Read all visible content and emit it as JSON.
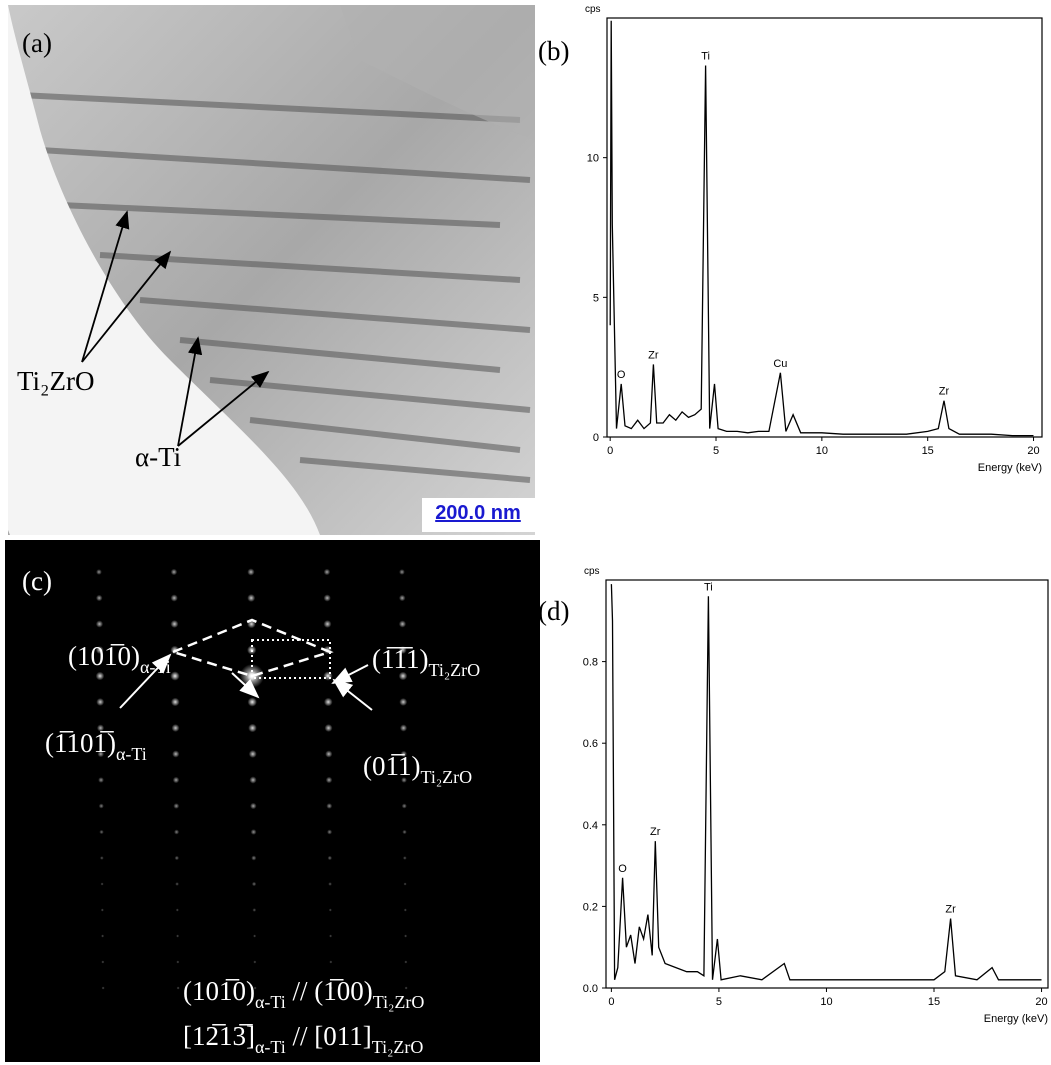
{
  "panels": {
    "a": {
      "label": "(a)",
      "phase1": "Ti₂ZrO",
      "phase2": "α-Ti",
      "scale_bar": "200.0 nm"
    },
    "b": {
      "label": "(b)"
    },
    "c": {
      "label": "(c)",
      "spots": [
        {
          "main": "(101̅0)",
          "sub": "α-Ti"
        },
        {
          "main": "(1̅1̅1)",
          "sub": "Ti₂ZrO"
        },
        {
          "main": "(1̅101̅)",
          "sub": "α-Ti"
        },
        {
          "main": "(01̅1)",
          "sub": "Ti₂ZrO"
        }
      ],
      "relations": [
        {
          "a": "(101̅0)",
          "a_sub": "α-Ti",
          "sep": " // ",
          "b": "(1̅00)",
          "b_sub": "Ti₂ZrO"
        },
        {
          "a": "[12̅13̅]",
          "a_sub": "α-Ti",
          "sep": " // ",
          "b": "[011]",
          "b_sub": "Ti₂ZrO"
        }
      ]
    },
    "d": {
      "label": "(d)"
    }
  },
  "chart_data": [
    {
      "type": "line",
      "y_label": "cps",
      "x_label": "Energy (keV)",
      "color": "#000000",
      "xlim": [
        -0.15,
        20.4
      ],
      "ylim": [
        0,
        15
      ],
      "xticks": [
        0,
        5,
        10,
        15,
        20
      ],
      "yticks": [
        0,
        5,
        10
      ],
      "x": [
        0,
        0.05,
        0.1,
        0.3,
        0.52,
        0.7,
        1.0,
        1.3,
        1.6,
        1.9,
        2.04,
        2.2,
        2.5,
        2.8,
        3.1,
        3.4,
        3.7,
        4.0,
        4.3,
        4.51,
        4.7,
        4.93,
        5.1,
        5.5,
        6.0,
        6.5,
        7.0,
        7.5,
        8.04,
        8.3,
        8.64,
        9.0,
        10,
        11,
        12,
        13,
        14,
        15,
        15.5,
        15.77,
        16.0,
        16.5,
        17,
        18,
        19,
        20
      ],
      "values": [
        4,
        14.9,
        7.6,
        0.3,
        1.9,
        0.4,
        0.3,
        0.6,
        0.3,
        0.5,
        2.6,
        0.5,
        0.5,
        0.8,
        0.6,
        0.9,
        0.7,
        0.8,
        1.0,
        13.3,
        0.3,
        1.9,
        0.3,
        0.2,
        0.2,
        0.15,
        0.2,
        0.2,
        2.3,
        0.2,
        0.8,
        0.15,
        0.15,
        0.1,
        0.1,
        0.1,
        0.1,
        0.2,
        0.3,
        1.3,
        0.3,
        0.1,
        0.1,
        0.1,
        0.05,
        0.05
      ],
      "peak_labels": [
        {
          "text": "O",
          "x": 0.52,
          "y": 1.9
        },
        {
          "text": "Zr",
          "x": 2.04,
          "y": 2.6
        },
        {
          "text": "Ti",
          "x": 4.51,
          "y": 13.3
        },
        {
          "text": "Cu",
          "x": 8.04,
          "y": 2.3
        },
        {
          "text": "Zr",
          "x": 15.77,
          "y": 1.3
        }
      ]
    },
    {
      "type": "line",
      "y_label": "cps",
      "x_label": "Energy (keV)",
      "color": "#000000",
      "xlim": [
        -0.25,
        20.3
      ],
      "ylim": [
        0,
        1
      ],
      "xticks": [
        0,
        5,
        10,
        15,
        20
      ],
      "yticks": [
        {
          "value": 0,
          "label": "0.0"
        },
        0.2,
        0.4,
        0.6,
        0.8
      ],
      "x": [
        0,
        0.05,
        0.15,
        0.3,
        0.52,
        0.7,
        0.9,
        1.1,
        1.3,
        1.5,
        1.7,
        1.9,
        2.04,
        2.2,
        2.5,
        3.0,
        3.5,
        4.0,
        4.3,
        4.51,
        4.7,
        4.93,
        5.1,
        6,
        7,
        8.04,
        8.3,
        9,
        10,
        11,
        12,
        13,
        14,
        15,
        15.5,
        15.77,
        16.0,
        17,
        17.7,
        18,
        19,
        20
      ],
      "values": [
        0.99,
        0.9,
        0.02,
        0.05,
        0.27,
        0.1,
        0.13,
        0.06,
        0.15,
        0.12,
        0.18,
        0.08,
        0.36,
        0.1,
        0.06,
        0.05,
        0.04,
        0.04,
        0.03,
        0.96,
        0.02,
        0.12,
        0.02,
        0.03,
        0.02,
        0.06,
        0.02,
        0.02,
        0.02,
        0.02,
        0.02,
        0.02,
        0.02,
        0.02,
        0.04,
        0.17,
        0.03,
        0.02,
        0.05,
        0.02,
        0.02,
        0.02
      ],
      "peak_labels": [
        {
          "text": "O",
          "x": 0.52,
          "y": 0.27
        },
        {
          "text": "Zr",
          "x": 2.04,
          "y": 0.36
        },
        {
          "text": "Ti",
          "x": 4.51,
          "y": 0.96
        },
        {
          "text": "Zr",
          "x": 15.77,
          "y": 0.17
        }
      ]
    }
  ]
}
